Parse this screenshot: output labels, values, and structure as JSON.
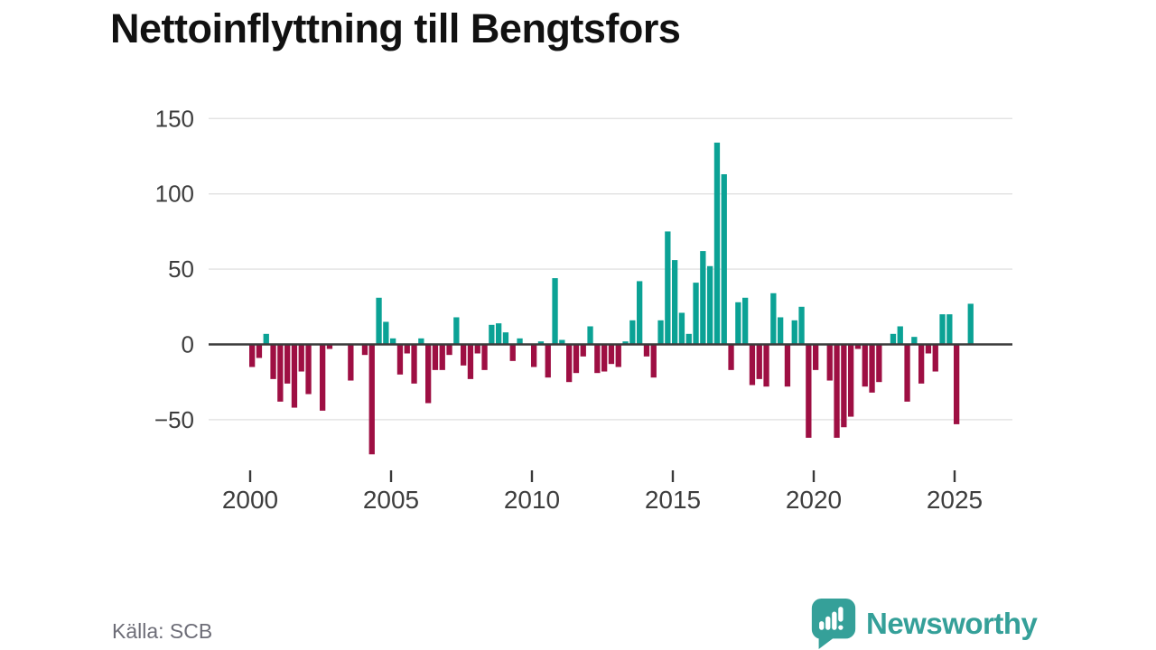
{
  "title": "Nettoinflyttning till Bengtsfors",
  "source": "Källa: SCB",
  "branding": {
    "name": "Newsworthy",
    "logo_icon": "speech-bubble-with-bar-chart-and-exclamation"
  },
  "colors": {
    "positive": "#0ba295",
    "negative": "#9e0f43",
    "axis": "#3a3a3a",
    "grid": "#e4e4e4",
    "text": "#3d3d3d",
    "muted": "#6d6d77",
    "brand": "#35a099",
    "background": "#ffffff"
  },
  "chart_data": {
    "type": "bar",
    "title": "Nettoinflyttning till Bengtsfors",
    "x_start": "2000-Q1",
    "x_interval": "quarter",
    "x_tick_labels": [
      "2000",
      "2005",
      "2010",
      "2015",
      "2020",
      "2025"
    ],
    "x_ticks_every_n_bars": 20,
    "y_ticks": [
      150,
      100,
      50,
      0,
      -50
    ],
    "ylim": [
      -80,
      160
    ],
    "grid": "horizontal",
    "legend": "none",
    "xlabel": "",
    "ylabel": "",
    "values": [
      -15,
      -9,
      7,
      -23,
      -38,
      -26,
      -42,
      -18,
      -33,
      0,
      -44,
      -3,
      0,
      0,
      -24,
      0,
      -7,
      -73,
      31,
      15,
      4,
      -20,
      -6,
      -26,
      4,
      -39,
      -17,
      -17,
      -7,
      18,
      -14,
      -23,
      -6,
      -17,
      13,
      14,
      8,
      -11,
      4,
      0,
      -15,
      2,
      -22,
      44,
      3,
      -25,
      -19,
      -8,
      12,
      -19,
      -18,
      -13,
      -15,
      2,
      16,
      42,
      -8,
      -22,
      16,
      75,
      56,
      21,
      7,
      41,
      62,
      52,
      134,
      113,
      -17,
      28,
      31,
      -27,
      -23,
      -28,
      34,
      18,
      -28,
      16,
      25,
      -62,
      -17,
      0,
      -24,
      -62,
      -55,
      -48,
      -3,
      -28,
      -32,
      -25,
      0,
      7,
      12,
      -38,
      5,
      -26,
      -6,
      -18,
      20,
      20,
      -53,
      0,
      27
    ]
  }
}
